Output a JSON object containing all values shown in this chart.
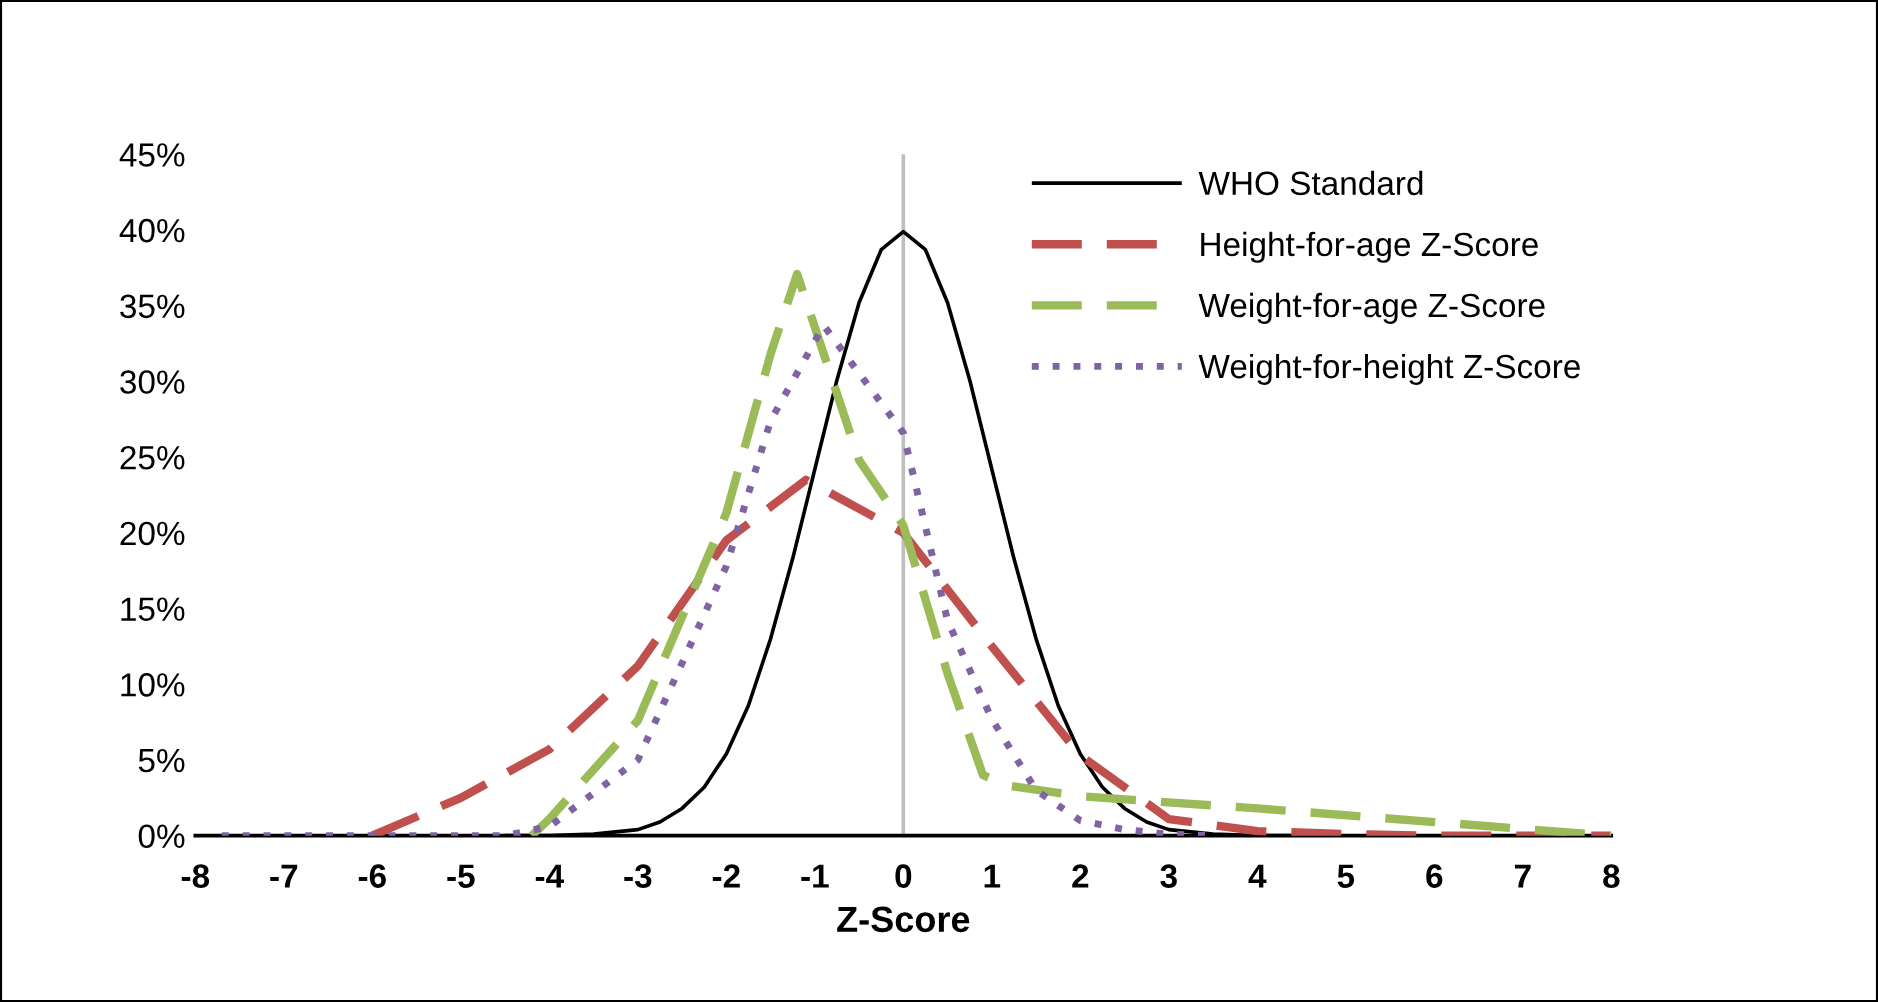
{
  "chart_data": {
    "type": "line",
    "xlabel": "Z-Score",
    "xlim": [
      -8,
      8
    ],
    "xticks": [
      -8,
      -7,
      -6,
      -5,
      -4,
      -3,
      -2,
      -1,
      0,
      1,
      2,
      3,
      4,
      5,
      6,
      7,
      8
    ],
    "ylim": [
      0,
      45
    ],
    "yticks": [
      {
        "value": 0,
        "label": "0%"
      },
      {
        "value": 5,
        "label": "5%"
      },
      {
        "value": 10,
        "label": "10%"
      },
      {
        "value": 15,
        "label": "15%"
      },
      {
        "value": 20,
        "label": "20%"
      },
      {
        "value": 25,
        "label": "25%"
      },
      {
        "value": 30,
        "label": "30%"
      },
      {
        "value": 35,
        "label": "35%"
      },
      {
        "value": 40,
        "label": "40%"
      },
      {
        "value": 45,
        "label": "45%"
      }
    ],
    "grid": false,
    "legend": "top right",
    "ref_lines": [
      {
        "axis": "x",
        "value": 0,
        "color": "#bfbfbf"
      }
    ],
    "series": [
      {
        "name": "WHO Standard",
        "color": "#000000",
        "line_style": "solid",
        "x": [
          -4.5,
          -4,
          -3.5,
          -3,
          -2.75,
          -2.5,
          -2.25,
          -2,
          -1.75,
          -1.5,
          -1.25,
          -1,
          -0.75,
          -0.5,
          -0.25,
          0,
          0.25,
          0.5,
          0.75,
          1,
          1.25,
          1.5,
          1.75,
          2,
          2.25,
          2.5,
          2.75,
          3,
          3.5,
          4,
          4.5
        ],
        "values": [
          0,
          0,
          0.1,
          0.4,
          0.9,
          1.8,
          3.2,
          5.4,
          8.6,
          13,
          18.3,
          24.2,
          30.1,
          35.2,
          38.7,
          39.9,
          38.7,
          35.2,
          30.1,
          24.2,
          18.3,
          13,
          8.6,
          5.4,
          3.2,
          1.8,
          0.9,
          0.4,
          0.1,
          0,
          0
        ]
      },
      {
        "name": "Height-for-age Z-Score",
        "color": "#c0504d",
        "line_style": "dashed",
        "x": [
          -6,
          -5,
          -4,
          -3,
          -2,
          -1.1,
          0,
          1,
          2,
          3,
          4,
          5,
          6,
          7,
          8
        ],
        "values": [
          0,
          2.5,
          5.7,
          11.2,
          19.5,
          23.5,
          20,
          12.5,
          5.3,
          1.1,
          0.3,
          0.1,
          0,
          0,
          0
        ]
      },
      {
        "name": "Weight-for-age Z-Score",
        "color": "#9bbb59",
        "line_style": "dashed",
        "x": [
          -4.2,
          -4,
          -3,
          -2,
          -1.5,
          -1.2,
          -0.5,
          0,
          0.5,
          0.9,
          1.2,
          2,
          4,
          6,
          8
        ],
        "values": [
          0,
          1.1,
          7.6,
          21.3,
          31.8,
          37.1,
          24.8,
          20.5,
          10.7,
          4,
          3.3,
          2.6,
          1.8,
          0.9,
          0
        ]
      },
      {
        "name": "Weight-for-height Z-Score",
        "color": "#8064a2",
        "line_style": "dotted",
        "x": [
          -7.7,
          -6,
          -4.5,
          -4,
          -3,
          -2,
          -1.5,
          -0.9,
          0,
          0.5,
          1,
          1.5,
          2,
          2.5,
          3,
          3.5
        ],
        "values": [
          0,
          0,
          0,
          0.6,
          5,
          17.8,
          27.4,
          33.7,
          26.6,
          14.2,
          7.7,
          3,
          1,
          0.4,
          0.1,
          0
        ]
      }
    ]
  }
}
